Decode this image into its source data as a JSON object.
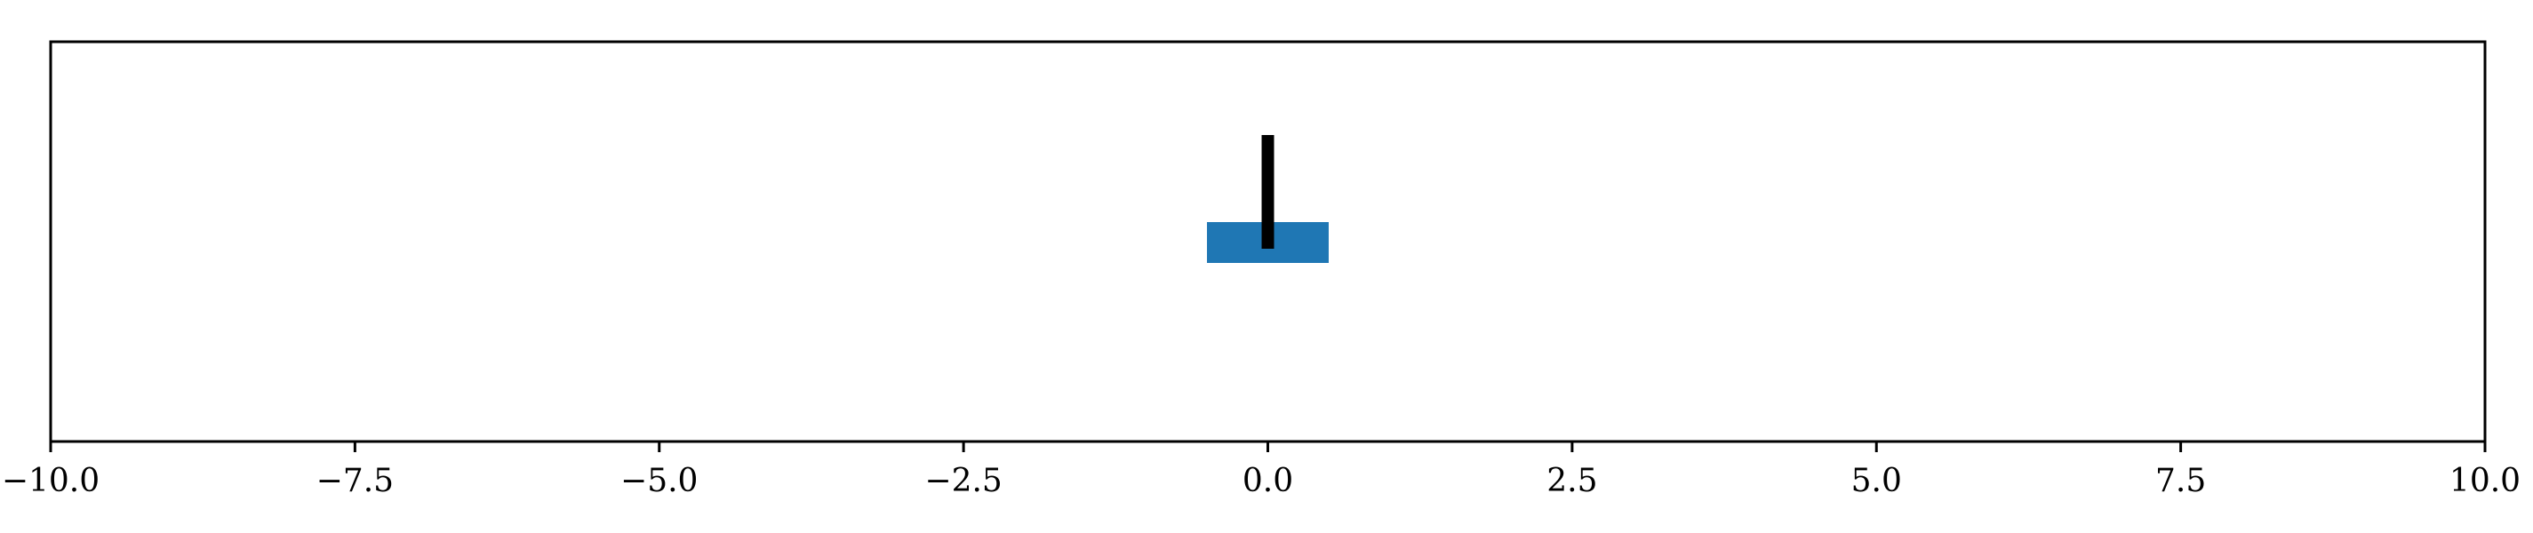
{
  "environment": "cart-pole",
  "x_axis": {
    "range": [
      -10.0,
      10.0
    ],
    "ticks": [
      -10.0,
      -7.5,
      -5.0,
      -2.5,
      0.0,
      2.5,
      5.0,
      7.5,
      10.0
    ],
    "tick_labels": [
      "−10.0",
      "−7.5",
      "−5.0",
      "−2.5",
      "0.0",
      "2.5",
      "5.0",
      "7.5",
      "10.0"
    ]
  },
  "cart": {
    "position": 0.0,
    "width": 1.0,
    "color": "#1f77b4"
  },
  "pole": {
    "angle_deg": 0.0,
    "color": "#000000"
  },
  "colors": {
    "frame": "#000000",
    "background": "#ffffff"
  }
}
